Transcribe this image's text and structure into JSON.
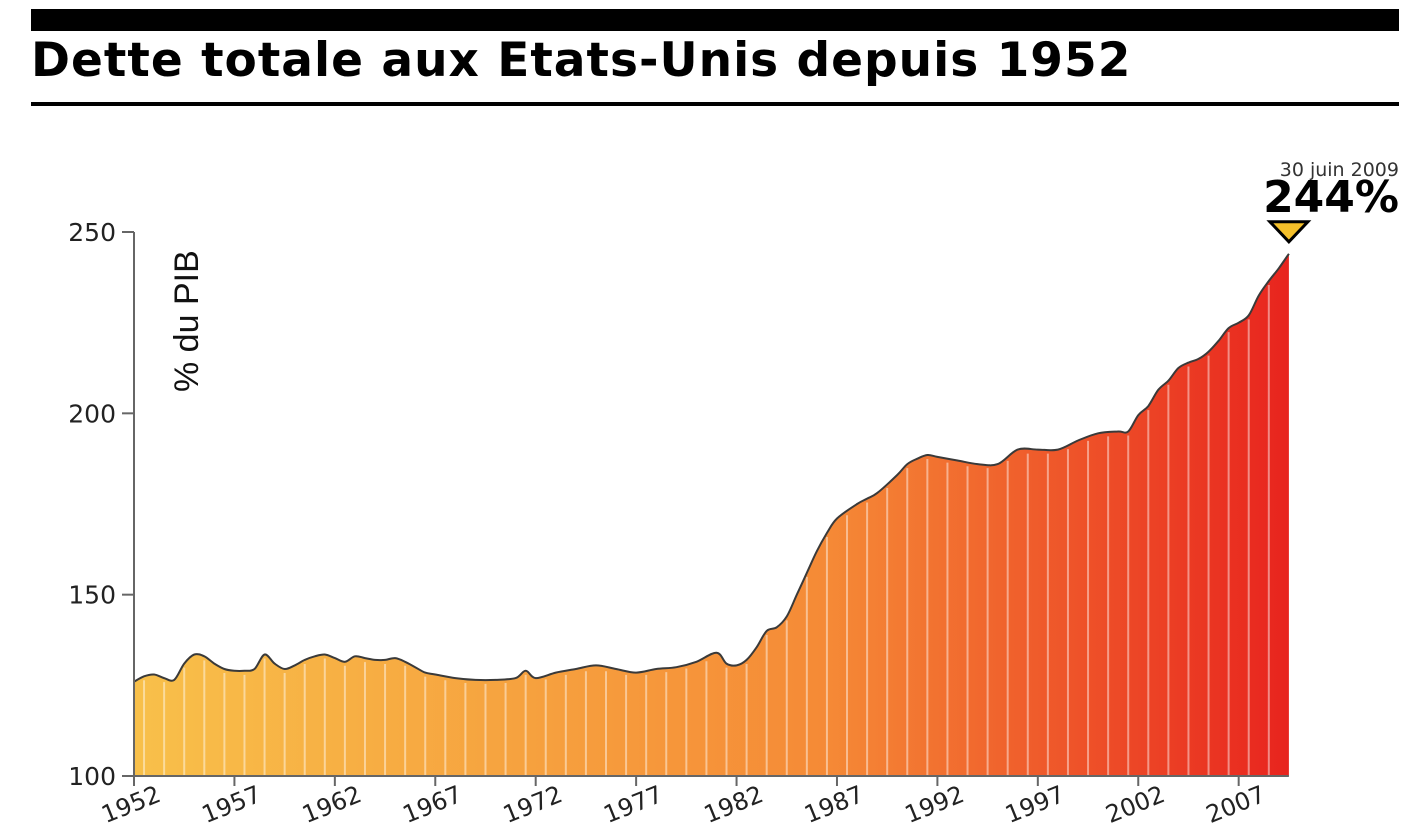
{
  "title": "Dette totale aux Etats-Unis depuis 1952",
  "chart_data": {
    "type": "area",
    "title": "Dette totale aux Etats-Unis depuis 1952",
    "ylabel": "% du PIB",
    "xlabel": "",
    "ylim": [
      100,
      250
    ],
    "xlim": [
      1952,
      2009.5
    ],
    "yticks": [
      100,
      150,
      200,
      250
    ],
    "xtick_labels": [
      "1952",
      "1957",
      "1962",
      "1967",
      "1972",
      "1977",
      "1982",
      "1987",
      "1992",
      "1997",
      "2002",
      "2007"
    ],
    "annotation": {
      "date": "30 juin 2009",
      "value_label": "244%",
      "x": 2009.5,
      "y": 244
    },
    "gradient_colors": [
      "#f8c04a",
      "#f58a36",
      "#e8241e"
    ],
    "series": [
      {
        "x": [
          1952,
          1952.5,
          1953,
          1953.5,
          1954,
          1954.5,
          1955,
          1955.5,
          1956,
          1956.5,
          1957,
          1957.5,
          1958,
          1958.5,
          1959,
          1959.5,
          1960,
          1960.5,
          1961,
          1961.5,
          1962,
          1962.5,
          1963,
          1963.5,
          1964,
          1964.5,
          1965,
          1965.5,
          1966,
          1966.5,
          1967,
          1968,
          1969,
          1970,
          1971,
          1971.5,
          1972,
          1973,
          1974,
          1975,
          1976,
          1977,
          1978,
          1979,
          1980,
          1981,
          1981.5,
          1982,
          1982.5,
          1983,
          1983.5,
          1984,
          1984.5,
          1985,
          1985.5,
          1986,
          1986.5,
          1987,
          1988,
          1988.5,
          1989,
          1990,
          1990.5,
          1991,
          1991.5,
          1992,
          1993,
          1994,
          1995,
          1996,
          1997,
          1998,
          1999,
          2000,
          2001,
          2001.5,
          2002,
          2002.5,
          2003,
          2003.5,
          2004,
          2004.5,
          2005,
          2005.5,
          2006,
          2006.5,
          2007,
          2007.5,
          2008,
          2008.5,
          2009,
          2009.5
        ],
        "y": [
          126,
          127.5,
          128,
          127,
          126.5,
          131,
          133.5,
          133,
          131,
          129.5,
          129,
          129,
          129.5,
          133.5,
          131,
          129.5,
          130.5,
          132,
          133,
          133.5,
          132.5,
          131.5,
          133,
          132.5,
          132,
          132,
          132.5,
          131.5,
          130,
          128.5,
          128,
          127,
          126.5,
          126.5,
          127,
          129,
          127,
          128.5,
          129.5,
          130.5,
          129.5,
          128.5,
          129.5,
          130,
          131.5,
          134,
          131,
          130.5,
          132,
          135.5,
          140,
          141,
          144,
          150,
          156,
          162,
          167,
          171,
          175,
          176.5,
          178,
          183,
          186,
          187.5,
          188.5,
          188,
          187,
          186,
          186,
          190,
          190,
          190,
          192.5,
          194.5,
          195,
          195,
          199.5,
          202,
          206.5,
          209,
          212.5,
          214,
          215,
          217,
          220,
          223.5,
          225,
          227,
          232.5,
          236.5,
          240,
          244
        ]
      }
    ]
  }
}
